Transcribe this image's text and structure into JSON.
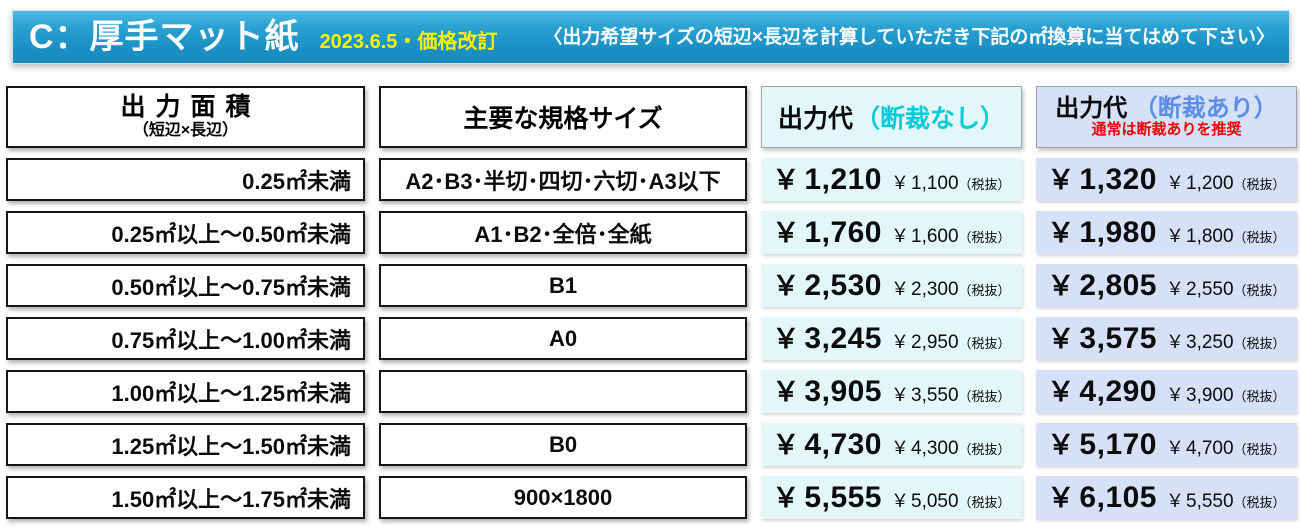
{
  "header": {
    "title": "C：厚手マット紙",
    "revision": "2023.6.5・価格改訂",
    "instruction": "〈出力希望サイズの短辺×長辺を計算していただき下記の㎡換算に当てはめて下さい〉",
    "bar_color": "#1b90c4",
    "title_color": "#ffffff",
    "revision_color": "#fff100"
  },
  "columns": {
    "area": {
      "title": "出力面積",
      "subtitle": "（短辺×長辺）"
    },
    "size": {
      "title": "主要な規格サイズ"
    },
    "no_cut": {
      "title": "出力代",
      "paren": "（断裁なし）",
      "accent_color": "#00ccd8",
      "bg_color": "#e3f6f8"
    },
    "with_cut": {
      "title": "出力代",
      "paren": "（断裁あり）",
      "note": "通常は断裁ありを推奨",
      "accent_color": "#5c8de9",
      "note_color": "#ec0000",
      "bg_color": "#d6e0f7"
    }
  },
  "table": {
    "currency": "￥",
    "tax_suffix": "（税抜）",
    "rows": [
      {
        "area": "0.25㎡未満",
        "size": "A2･B3･半切･四切･六切･A3以下",
        "no_cut_tax_in": "1,210",
        "no_cut_tax_ex": "1,100",
        "cut_tax_in": "1,320",
        "cut_tax_ex": "1,200"
      },
      {
        "area": "0.25㎡以上～0.50㎡未満",
        "size": "A1･B2･全倍･全紙",
        "no_cut_tax_in": "1,760",
        "no_cut_tax_ex": "1,600",
        "cut_tax_in": "1,980",
        "cut_tax_ex": "1,800"
      },
      {
        "area": "0.50㎡以上～0.75㎡未満",
        "size": "B1",
        "no_cut_tax_in": "2,530",
        "no_cut_tax_ex": "2,300",
        "cut_tax_in": "2,805",
        "cut_tax_ex": "2,550"
      },
      {
        "area": "0.75㎡以上～1.00㎡未満",
        "size": "A0",
        "no_cut_tax_in": "3,245",
        "no_cut_tax_ex": "2,950",
        "cut_tax_in": "3,575",
        "cut_tax_ex": "3,250"
      },
      {
        "area": "1.00㎡以上～1.25㎡未満",
        "size": "",
        "no_cut_tax_in": "3,905",
        "no_cut_tax_ex": "3,550",
        "cut_tax_in": "4,290",
        "cut_tax_ex": "3,900"
      },
      {
        "area": "1.25㎡以上～1.50㎡未満",
        "size": "B0",
        "no_cut_tax_in": "4,730",
        "no_cut_tax_ex": "4,300",
        "cut_tax_in": "5,170",
        "cut_tax_ex": "4,700"
      },
      {
        "area": "1.50㎡以上～1.75㎡未満",
        "size": "900×1800",
        "no_cut_tax_in": "5,555",
        "no_cut_tax_ex": "5,050",
        "cut_tax_in": "6,105",
        "cut_tax_ex": "5,550"
      }
    ]
  }
}
